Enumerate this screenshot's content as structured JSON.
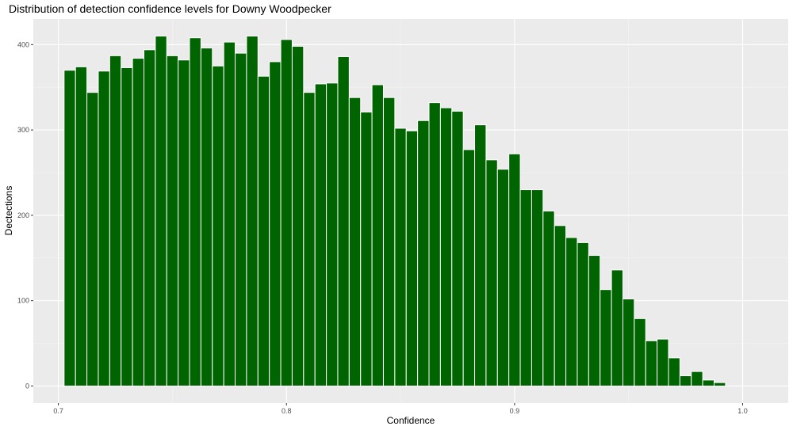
{
  "chart_data": {
    "type": "bar",
    "title": "Distribution of detection confidence levels for Downy Woodpecker",
    "xlabel": "Confidence",
    "ylabel": "Dectections",
    "xlim": [
      0.689,
      1.02
    ],
    "ylim": [
      -20,
      430
    ],
    "x_ticks": [
      "0.7",
      "0.8",
      "0.9",
      "1.0"
    ],
    "y_ticks": [
      "0",
      "100",
      "200",
      "300",
      "400"
    ],
    "grid": true,
    "bin_width": 0.005,
    "x": [
      0.705,
      0.71,
      0.715,
      0.72,
      0.725,
      0.73,
      0.735,
      0.74,
      0.745,
      0.75,
      0.755,
      0.76,
      0.765,
      0.77,
      0.775,
      0.78,
      0.785,
      0.79,
      0.795,
      0.8,
      0.805,
      0.81,
      0.815,
      0.82,
      0.825,
      0.83,
      0.835,
      0.84,
      0.845,
      0.85,
      0.855,
      0.86,
      0.865,
      0.87,
      0.875,
      0.88,
      0.885,
      0.89,
      0.895,
      0.9,
      0.905,
      0.91,
      0.915,
      0.92,
      0.925,
      0.93,
      0.935,
      0.94,
      0.945,
      0.95,
      0.955,
      0.96,
      0.965,
      0.97,
      0.975,
      0.98,
      0.985,
      0.99
    ],
    "values": [
      370,
      374,
      344,
      369,
      387,
      373,
      384,
      394,
      410,
      387,
      382,
      408,
      396,
      375,
      403,
      390,
      410,
      363,
      380,
      406,
      398,
      344,
      354,
      355,
      386,
      338,
      321,
      353,
      338,
      302,
      299,
      311,
      332,
      326,
      322,
      277,
      306,
      265,
      254,
      272,
      230,
      230,
      205,
      188,
      174,
      168,
      153,
      113,
      136,
      102,
      79,
      53,
      55,
      33,
      12,
      17,
      7,
      4
    ],
    "colors": {
      "bar": "#006400",
      "panel": "#ebebeb",
      "grid_major": "#ffffff",
      "grid_minor": "#f4f4f4"
    }
  }
}
